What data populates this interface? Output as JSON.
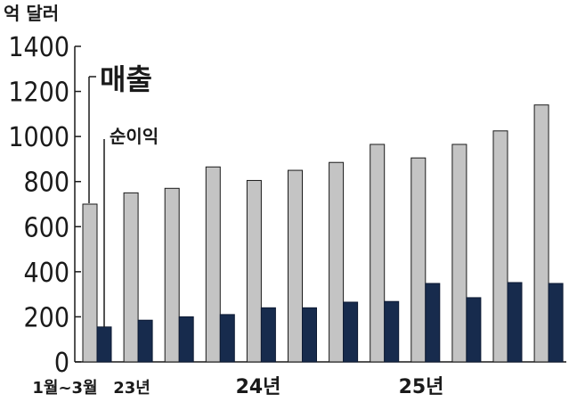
{
  "chart_data": {
    "type": "bar",
    "unit_label": "억 달러",
    "y_ticks": [
      "0",
      "200",
      "400",
      "600",
      "800",
      "1000",
      "1200",
      "1400"
    ],
    "ylim": [
      0,
      1400
    ],
    "series": [
      {
        "name": "매출",
        "color": "#c4c4c4",
        "values": [
          700,
          750,
          770,
          865,
          805,
          850,
          885,
          965,
          905,
          965,
          1025,
          1140
        ]
      },
      {
        "name": "순이익",
        "color": "#172b4d",
        "values": [
          155,
          185,
          200,
          210,
          240,
          240,
          265,
          268,
          348,
          285,
          352,
          348
        ]
      }
    ],
    "x_labels": [
      {
        "text": "1월~3월",
        "index": 0
      },
      {
        "text": "23년",
        "index": 1
      },
      {
        "text": "24년",
        "index": 4
      },
      {
        "text": "25년",
        "index": 8
      }
    ]
  }
}
